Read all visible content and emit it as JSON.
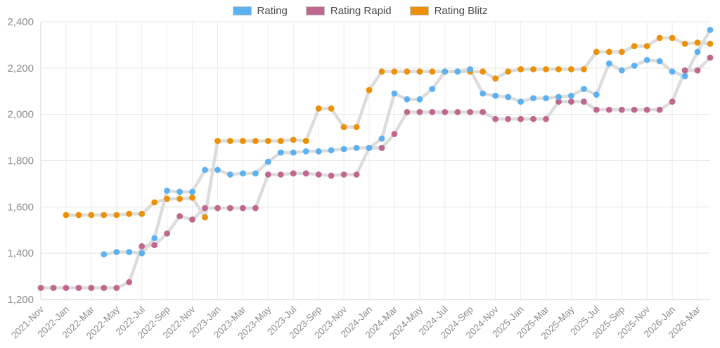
{
  "legend": [
    {
      "label": "Rating",
      "color": "#5cb1f0"
    },
    {
      "label": "Rating Rapid",
      "color": "#c0678f"
    },
    {
      "label": "Rating Blitz",
      "color": "#ec9006"
    }
  ],
  "axis": {
    "y_tick_labels": [
      "1,200",
      "1,400",
      "1,600",
      "1,800",
      "2,000",
      "2,200",
      "2,400"
    ]
  },
  "chart_data": {
    "type": "line",
    "title": "",
    "xlabel": "",
    "ylabel": "",
    "ylim": [
      1200,
      2400
    ],
    "ytick_step": 200,
    "grid": true,
    "legend_position": "top",
    "point_style": "grey connector lines with colored dots",
    "line_color": "#d8d8d8",
    "tick_every": 2,
    "months": [
      "2021-Nov",
      "2021-Dec",
      "2022-Jan",
      "2022-Feb",
      "2022-Mar",
      "2022-Apr",
      "2022-May",
      "2022-Jun",
      "2022-Jul",
      "2022-Aug",
      "2022-Sep",
      "2022-Oct",
      "2022-Nov",
      "2022-Dec",
      "2023-Jan",
      "2023-Feb",
      "2023-Mar",
      "2023-Apr",
      "2023-May",
      "2023-Jun",
      "2023-Jul",
      "2023-Aug",
      "2023-Sep",
      "2023-Oct",
      "2023-Nov",
      "2023-Dec",
      "2024-Jan",
      "2024-Feb",
      "2024-Mar",
      "2024-Apr",
      "2024-May",
      "2024-Jun",
      "2024-Jul",
      "2024-Aug",
      "2024-Sep",
      "2024-Oct",
      "2024-Nov",
      "2024-Dec",
      "2025-Jan",
      "2025-Feb",
      "2025-Mar",
      "2025-Apr",
      "2025-May",
      "2025-Jun",
      "2025-Jul",
      "2025-Aug",
      "2025-Sep",
      "2025-Oct",
      "2025-Nov",
      "2025-Dec",
      "2026-Jan",
      "2026-Feb",
      "2026-Mar",
      "2026-Apr"
    ],
    "series": [
      {
        "name": "Rating",
        "color": "#5cb1f0",
        "values": [
          null,
          null,
          null,
          null,
          null,
          1395,
          1405,
          1405,
          1400,
          1465,
          1670,
          1665,
          1665,
          1760,
          1760,
          1740,
          1745,
          1745,
          1795,
          1835,
          1835,
          1840,
          1840,
          1845,
          1850,
          1855,
          1855,
          1895,
          2090,
          2065,
          2065,
          2110,
          2185,
          2185,
          2195,
          2090,
          2080,
          2075,
          2055,
          2070,
          2070,
          2075,
          2080,
          2110,
          2085,
          2220,
          2190,
          2210,
          2235,
          2230,
          2185,
          2165,
          2270,
          2365
        ]
      },
      {
        "name": "Rating Rapid",
        "color": "#c0678f",
        "values": [
          1250,
          1250,
          1250,
          1250,
          1250,
          1250,
          1250,
          1275,
          1430,
          1435,
          1485,
          1560,
          1545,
          1595,
          1595,
          1595,
          1595,
          1595,
          1740,
          1740,
          1745,
          1745,
          1740,
          1735,
          1740,
          1740,
          1855,
          1855,
          1915,
          2010,
          2010,
          2010,
          2010,
          2010,
          2010,
          2010,
          1980,
          1980,
          1980,
          1980,
          1980,
          2055,
          2055,
          2055,
          2020,
          2020,
          2020,
          2020,
          2020,
          2020,
          2055,
          2190,
          2190,
          2245
        ]
      },
      {
        "name": "Rating Blitz",
        "color": "#ec9006",
        "values": [
          null,
          null,
          1565,
          1565,
          1565,
          1565,
          1565,
          1570,
          1570,
          1620,
          1635,
          1635,
          1640,
          1555,
          1885,
          1885,
          1885,
          1885,
          1885,
          1885,
          1890,
          1885,
          2025,
          2025,
          1945,
          1945,
          2105,
          2185,
          2185,
          2185,
          2185,
          2185,
          2185,
          2185,
          2185,
          2185,
          2155,
          2185,
          2195,
          2195,
          2195,
          2195,
          2195,
          2195,
          2270,
          2270,
          2270,
          2295,
          2295,
          2330,
          2330,
          2305,
          2310,
          2305
        ]
      }
    ]
  }
}
